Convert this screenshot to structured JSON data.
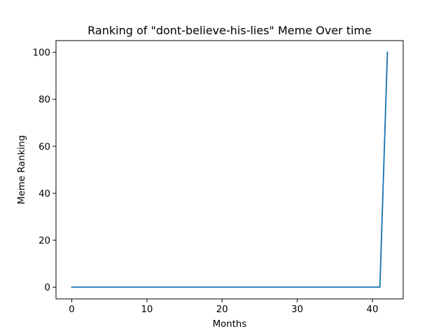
{
  "chart_data": {
    "type": "line",
    "title": "Ranking of \"dont-believe-his-lies\" Meme Over time",
    "xlabel": "Months",
    "ylabel": "Meme Ranking",
    "xlim": [
      -2.1,
      44.1
    ],
    "ylim": [
      -5,
      105
    ],
    "xticks": [
      0,
      10,
      20,
      30,
      40
    ],
    "yticks": [
      0,
      20,
      40,
      60,
      80,
      100
    ],
    "grid": false,
    "series": [
      {
        "color": "#1f77b4",
        "x": [
          0,
          1,
          2,
          3,
          4,
          5,
          6,
          7,
          8,
          9,
          10,
          11,
          12,
          13,
          14,
          15,
          16,
          17,
          18,
          19,
          20,
          21,
          22,
          23,
          24,
          25,
          26,
          27,
          28,
          29,
          30,
          31,
          32,
          33,
          34,
          35,
          36,
          37,
          38,
          39,
          40,
          41,
          42
        ],
        "y": [
          0,
          0,
          0,
          0,
          0,
          0,
          0,
          0,
          0,
          0,
          0,
          0,
          0,
          0,
          0,
          0,
          0,
          0,
          0,
          0,
          0,
          0,
          0,
          0,
          0,
          0,
          0,
          0,
          0,
          0,
          0,
          0,
          0,
          0,
          0,
          0,
          0,
          0,
          0,
          0,
          0,
          0,
          100
        ]
      }
    ]
  }
}
